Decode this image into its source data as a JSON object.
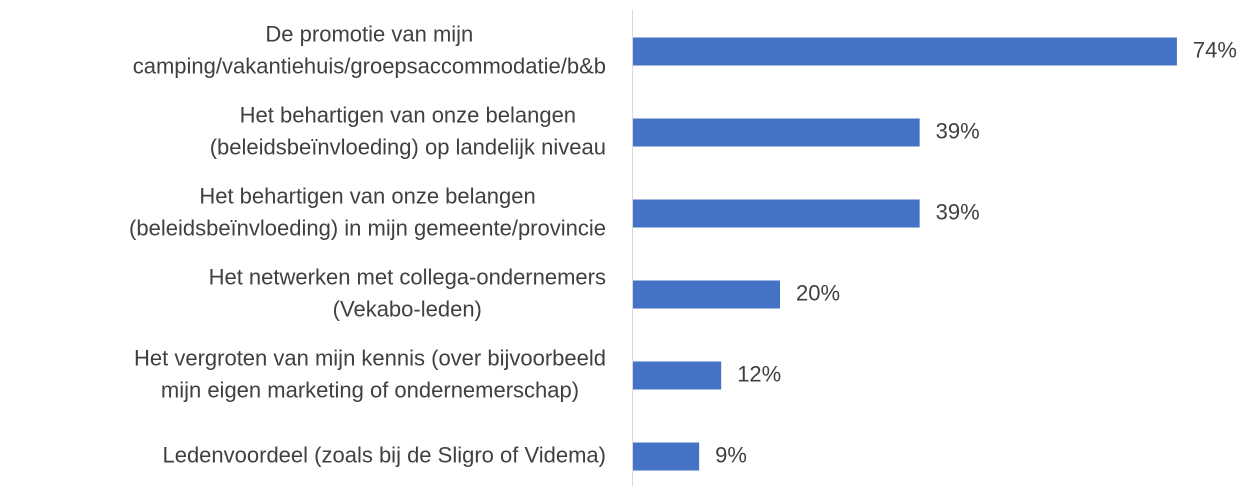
{
  "chart_data": {
    "type": "bar",
    "orientation": "horizontal",
    "categories": [
      [
        "De promotie van mijn",
        "camping/vakantiehuis/groepsaccommodatie/b&b"
      ],
      [
        "Het behartigen van onze belangen",
        "(beleidsbeïnvloeding) op landelijk niveau"
      ],
      [
        "Het behartigen van onze belangen",
        "(beleidsbeïnvloeding) in mijn gemeente/provincie"
      ],
      [
        "Het netwerken met collega-ondernemers",
        "(Vekabo-leden)"
      ],
      [
        "Het vergroten van mijn kennis (over bijvoorbeeld",
        "mijn eigen marketing of ondernemerschap)"
      ],
      [
        "Ledenvoordeel (zoals bij de Sligro of Videma)"
      ]
    ],
    "values": [
      74,
      39,
      39,
      20,
      12,
      9
    ],
    "value_labels": [
      "74%",
      "39%",
      "39%",
      "20%",
      "12%",
      "9%"
    ],
    "color": "#4472c4",
    "xlim": [
      0,
      80
    ]
  }
}
